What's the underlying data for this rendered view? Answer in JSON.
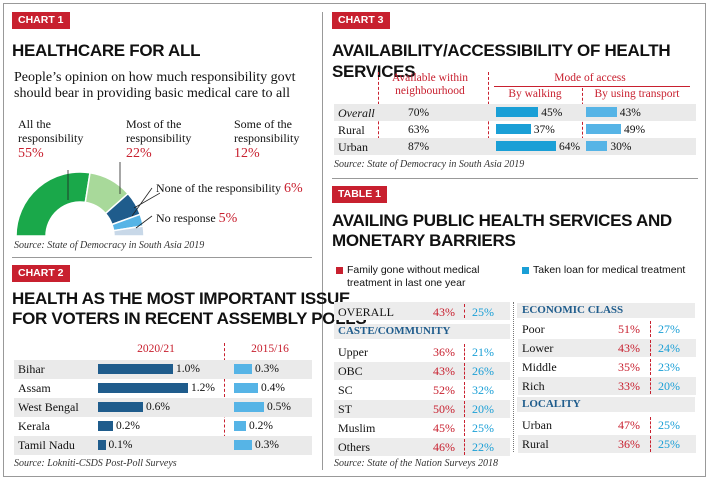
{
  "chart1": {
    "tag": "CHART 1",
    "title": "HEALTHCARE FOR ALL",
    "subtitle_line1": "People’s opinion on how much responsibility govt",
    "subtitle_line2": "should bear in providing basic medical care to all",
    "source": "Source: State of Democracy in South Asia 2019",
    "colors": [
      "#1aa84a",
      "#a8d99a",
      "#1f5c8c",
      "#56b4e6",
      "#c8d8e8"
    ]
  },
  "chart1_labels": {
    "all_1": "All the",
    "all_2": "responsibility",
    "all_pct": "55%",
    "most_1": "Most of the",
    "most_2": "responsibility",
    "most_pct": "22%",
    "some_1": "Some of the",
    "some_2": "responsibility",
    "some_pct": "12%",
    "none": "None of the responsibility",
    "none_pct": "6%",
    "nores": "No response",
    "nores_pct": "5%"
  },
  "chart2": {
    "tag": "CHART 2",
    "title_line1": "HEALTH AS THE MOST IMPORTANT ISSUE",
    "title_line2": "FOR VOTERS IN RECENT ASSEMBLY POLLS",
    "col1": "2020/21",
    "col2": "2015/16",
    "source": "Source: Lokniti-CSDS Post-Poll Surveys"
  },
  "chart3": {
    "tag": "CHART 3",
    "title": "AVAILABILITY/ACCESSIBILITY OF HEALTH SERVICES",
    "col_avail_1": "Available within",
    "col_avail_2": "neighbourhood",
    "col_mode": "Mode of access",
    "col_walk": "By walking",
    "col_transport": "By using transport",
    "source": "Source: State of Democracy in South Asia 2019"
  },
  "table1": {
    "tag": "TABLE 1",
    "title_line1": "AVAILING PUBLIC HEALTH SERVICES AND",
    "title_line2": "MONETARY BARRIERS",
    "legend_red_1": "Family gone without medical",
    "legend_red_2": "treatment in last one year",
    "legend_blue": "Taken loan for medical treatment",
    "overall_label": "OVERALL",
    "overall_a": "43%",
    "overall_b": "25%",
    "caste_heading": "CASTE/COMMUNITY",
    "econ_heading": "ECONOMIC CLASS",
    "locality_heading": "LOCALITY",
    "source": "Source: State of the Nation Surveys 2018"
  },
  "chart_data": [
    {
      "type": "pie",
      "title": "HEALTHCARE FOR ALL",
      "categories": [
        "All the responsibility",
        "Most of the responsibility",
        "Some of the responsibility",
        "None of the responsibility",
        "No response"
      ],
      "values": [
        55,
        22,
        12,
        6,
        5
      ]
    },
    {
      "type": "bar",
      "title": "HEALTH AS THE MOST IMPORTANT ISSUE FOR VOTERS IN RECENT ASSEMBLY POLLS",
      "categories": [
        "Bihar",
        "Assam",
        "West Bengal",
        "Kerala",
        "Tamil Nadu"
      ],
      "series": [
        {
          "name": "2020/21",
          "values": [
            1.0,
            1.2,
            0.6,
            0.2,
            0.1
          ],
          "labels": [
            "1.0%",
            "1.2%",
            "0.6%",
            "0.2%",
            "0.1%"
          ]
        },
        {
          "name": "2015/16",
          "values": [
            0.3,
            0.4,
            0.5,
            0.2,
            0.3
          ],
          "labels": [
            "0.3%",
            "0.4%",
            "0.5%",
            "0.2%",
            "0.3%"
          ]
        }
      ]
    },
    {
      "type": "bar",
      "title": "AVAILABILITY/ACCESSIBILITY OF HEALTH SERVICES",
      "categories": [
        "Overall",
        "Rural",
        "Urban"
      ],
      "series": [
        {
          "name": "Available within neighbourhood",
          "values": [
            70,
            63,
            87
          ],
          "labels": [
            "70%",
            "63%",
            "87%"
          ]
        },
        {
          "name": "By walking",
          "values": [
            45,
            37,
            64
          ],
          "labels": [
            "45%",
            "37%",
            "64%"
          ]
        },
        {
          "name": "By using transport",
          "values": [
            43,
            49,
            30
          ],
          "labels": [
            "43%",
            "49%",
            "30%"
          ]
        }
      ]
    },
    {
      "type": "table",
      "title": "AVAILING PUBLIC HEALTH SERVICES AND MONETARY BARRIERS",
      "columns": [
        "Family gone without medical treatment in last one year",
        "Taken loan for medical treatment"
      ],
      "groups": [
        {
          "name": "OVERALL",
          "rows": [
            {
              "label": "OVERALL",
              "a": "43%",
              "b": "25%"
            }
          ]
        },
        {
          "name": "CASTE/COMMUNITY",
          "rows": [
            {
              "label": "Upper",
              "a": "36%",
              "b": "21%"
            },
            {
              "label": "OBC",
              "a": "43%",
              "b": "26%"
            },
            {
              "label": "SC",
              "a": "52%",
              "b": "32%"
            },
            {
              "label": "ST",
              "a": "50%",
              "b": "20%"
            },
            {
              "label": "Muslim",
              "a": "45%",
              "b": "25%"
            },
            {
              "label": "Others",
              "a": "46%",
              "b": "22%"
            }
          ]
        },
        {
          "name": "ECONOMIC CLASS",
          "rows": [
            {
              "label": "Poor",
              "a": "51%",
              "b": "27%"
            },
            {
              "label": "Lower",
              "a": "43%",
              "b": "24%"
            },
            {
              "label": "Middle",
              "a": "35%",
              "b": "23%"
            },
            {
              "label": "Rich",
              "a": "33%",
              "b": "20%"
            }
          ]
        },
        {
          "name": "LOCALITY",
          "rows": [
            {
              "label": "Urban",
              "a": "47%",
              "b": "25%"
            },
            {
              "label": "Rural",
              "a": "36%",
              "b": "25%"
            }
          ]
        }
      ]
    }
  ]
}
